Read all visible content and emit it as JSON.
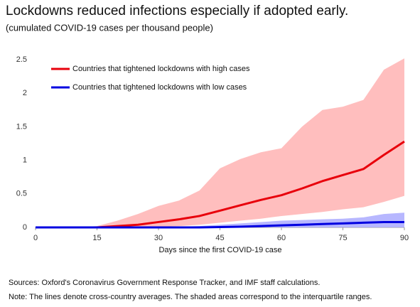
{
  "chart_data": {
    "type": "line",
    "title": "Lockdowns reduced infections especially if adopted early.",
    "subtitle": "(cumulated COVID-19 cases per thousand people)",
    "x_label": "Days since the first COVID-19 case",
    "x": [
      0,
      5,
      10,
      15,
      20,
      25,
      30,
      35,
      40,
      45,
      50,
      55,
      60,
      65,
      70,
      75,
      80,
      85,
      90
    ],
    "xlim": [
      0,
      90
    ],
    "xticks": [
      0,
      15,
      30,
      45,
      60,
      75,
      90
    ],
    "ylim": [
      0,
      2.5
    ],
    "yticks": [
      0,
      0.5,
      1,
      1.5,
      2,
      2.5
    ],
    "grid": false,
    "legend": "top-left",
    "series": [
      {
        "name": "Countries that tightened lockdowns with high cases",
        "color": "#e8000b",
        "values": [
          0,
          0,
          0,
          0,
          0.02,
          0.04,
          0.08,
          0.12,
          0.17,
          0.25,
          0.33,
          0.41,
          0.48,
          0.58,
          0.69,
          0.78,
          0.87,
          1.08,
          1.28
        ],
        "band": {
          "color": "#ffb3b3",
          "upper": [
            0,
            0,
            0,
            0.02,
            0.1,
            0.2,
            0.32,
            0.4,
            0.55,
            0.88,
            1.02,
            1.12,
            1.18,
            1.5,
            1.75,
            1.8,
            1.9,
            2.35,
            2.52
          ],
          "lower": [
            0,
            0,
            0,
            0,
            0,
            0,
            0.01,
            0.02,
            0.04,
            0.07,
            0.1,
            0.13,
            0.17,
            0.2,
            0.23,
            0.27,
            0.3,
            0.38,
            0.47
          ]
        }
      },
      {
        "name": "Countries that tightened lockdowns with low cases",
        "color": "#0000e0",
        "values": [
          0,
          0,
          0,
          0,
          0,
          0,
          0,
          0,
          0,
          0.005,
          0.01,
          0.02,
          0.03,
          0.04,
          0.05,
          0.06,
          0.07,
          0.08,
          0.08
        ],
        "band": {
          "color": "#aaaaff",
          "upper": [
            0,
            0,
            0,
            0,
            0,
            0,
            0,
            0.01,
            0.02,
            0.04,
            0.06,
            0.08,
            0.1,
            0.11,
            0.12,
            0.13,
            0.15,
            0.2,
            0.22
          ],
          "lower": [
            0,
            0,
            0,
            0,
            0,
            0,
            0,
            0,
            0,
            0,
            0,
            0,
            0,
            0,
            0,
            0,
            0,
            0,
            0
          ]
        }
      }
    ],
    "notes": [
      "Sources: Oxford's Coronavirus Government Response Tracker, and IMF staff calculations.",
      "Note: The lines denote cross-country averages. The shaded areas correspond to the interquartile ranges."
    ]
  }
}
